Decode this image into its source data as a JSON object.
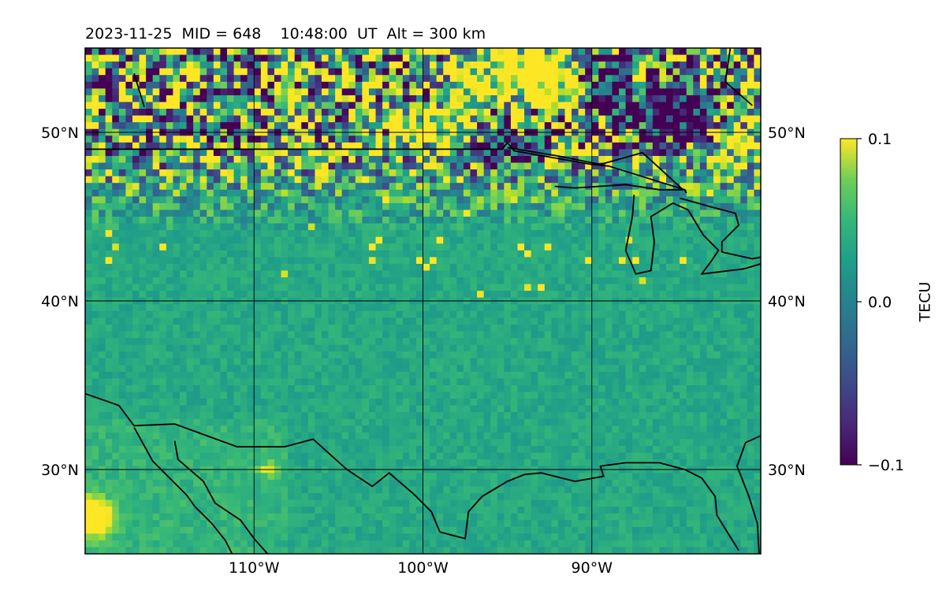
{
  "title": "2023-11-25  MID = 648    10:48:00  UT  Alt = 300 km",
  "map": {
    "lon_range": [
      -120,
      -80
    ],
    "lat_range": [
      25,
      55
    ],
    "x_ticks": [
      {
        "value": -110,
        "label": "110°W"
      },
      {
        "value": -100,
        "label": "100°W"
      },
      {
        "value": -90,
        "label": "90°W"
      }
    ],
    "y_ticks": [
      {
        "value": 50,
        "label": "50°N"
      },
      {
        "value": 40,
        "label": "40°N"
      },
      {
        "value": 30,
        "label": "30°N"
      }
    ],
    "gridlines": true,
    "coastlines": true
  },
  "colorbar": {
    "label": "TECU",
    "colormap": "viridis",
    "vmin": -0.1,
    "vmax": 0.1,
    "ticks": [
      {
        "value": 0.1,
        "label": "0.1"
      },
      {
        "value": 0.0,
        "label": "0.0"
      },
      {
        "value": -0.1,
        "label": "−0.1"
      }
    ]
  },
  "colors": {
    "low": "#440154",
    "mid": "#21918c",
    "high": "#fde725"
  }
}
